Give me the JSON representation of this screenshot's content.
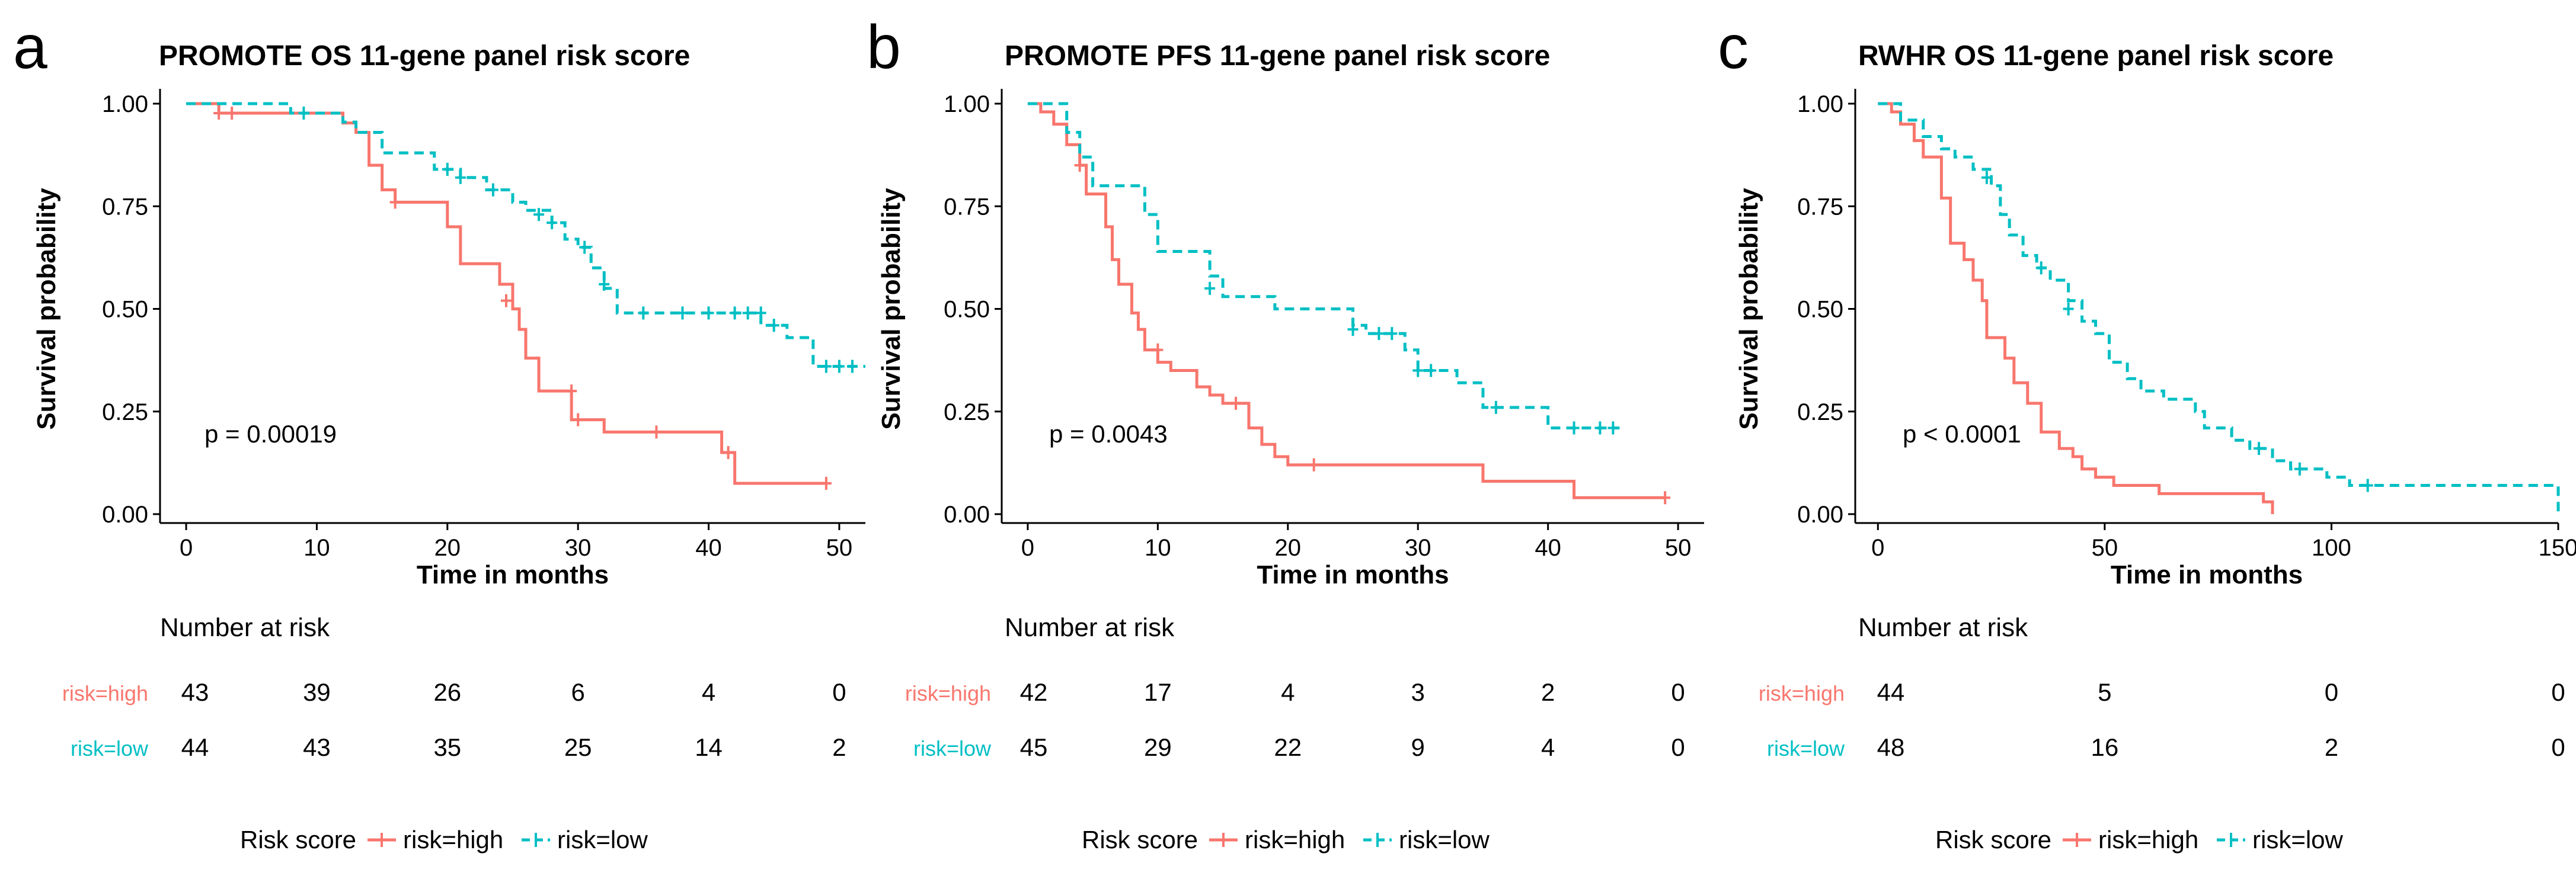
{
  "colors": {
    "high": "#F8766D",
    "low": "#00BFC4",
    "axis": "#000000",
    "text": "#000000"
  },
  "risk_table_title": "Number at risk",
  "chart_data": [
    {
      "type": "line",
      "panel_letter": "a",
      "title": "PROMOTE OS 11-gene panel risk score",
      "xlabel": "Time in months",
      "ylabel": "Survival probability",
      "xlim": [
        0,
        52
      ],
      "ylim": [
        0,
        1
      ],
      "xticks": [
        0,
        10,
        20,
        30,
        40,
        50
      ],
      "yticks": [
        0,
        0.25,
        0.5,
        0.75,
        1
      ],
      "ytick_labels": [
        "0.00",
        "0.25",
        "0.50",
        "0.75",
        "1.00"
      ],
      "pvalue": "p = 0.00019",
      "risk_table": {
        "times": [
          0,
          10,
          20,
          30,
          40,
          50
        ],
        "rows": [
          {
            "label": "risk=high",
            "counts": [
              43,
              39,
              26,
              6,
              4,
              0
            ]
          },
          {
            "label": "risk=low",
            "counts": [
              44,
              43,
              35,
              25,
              14,
              2
            ]
          }
        ]
      },
      "legend": {
        "title": "Risk score",
        "entries": [
          "risk=high",
          "risk=low"
        ]
      },
      "series": [
        {
          "name": "risk=high",
          "steps": [
            [
              0,
              1.0
            ],
            [
              2.5,
              0.977
            ],
            [
              10,
              0.977
            ],
            [
              12,
              0.953
            ],
            [
              13,
              0.93
            ],
            [
              14,
              0.85
            ],
            [
              15,
              0.79
            ],
            [
              16,
              0.76
            ],
            [
              20,
              0.7
            ],
            [
              21,
              0.61
            ],
            [
              24,
              0.56
            ],
            [
              25,
              0.5
            ],
            [
              25.5,
              0.45
            ],
            [
              26,
              0.38
            ],
            [
              27,
              0.3
            ],
            [
              29.5,
              0.23
            ],
            [
              32,
              0.2
            ],
            [
              41,
              0.15
            ],
            [
              42,
              0.075
            ],
            [
              49,
              0.075
            ]
          ],
          "censors": [
            [
              2.5,
              0.977
            ],
            [
              3.5,
              0.977
            ],
            [
              16,
              0.76
            ],
            [
              24.5,
              0.52
            ],
            [
              29.5,
              0.3
            ],
            [
              30,
              0.23
            ],
            [
              36,
              0.2
            ],
            [
              41.5,
              0.15
            ],
            [
              49,
              0.075
            ]
          ]
        },
        {
          "name": "risk=low",
          "steps": [
            [
              0,
              1.0
            ],
            [
              8,
              0.977
            ],
            [
              10,
              0.977
            ],
            [
              12,
              0.955
            ],
            [
              13,
              0.93
            ],
            [
              15,
              0.88
            ],
            [
              19,
              0.84
            ],
            [
              21,
              0.82
            ],
            [
              23,
              0.79
            ],
            [
              25,
              0.76
            ],
            [
              26,
              0.74
            ],
            [
              28,
              0.71
            ],
            [
              29,
              0.67
            ],
            [
              30,
              0.65
            ],
            [
              31,
              0.6
            ],
            [
              32,
              0.55
            ],
            [
              33,
              0.49
            ],
            [
              44,
              0.46
            ],
            [
              46,
              0.43
            ],
            [
              48,
              0.36
            ],
            [
              52,
              0.36
            ]
          ],
          "censors": [
            [
              9,
              0.977
            ],
            [
              20,
              0.84
            ],
            [
              21,
              0.82
            ],
            [
              23.5,
              0.79
            ],
            [
              27,
              0.73
            ],
            [
              28,
              0.71
            ],
            [
              30.5,
              0.65
            ],
            [
              32,
              0.56
            ],
            [
              35,
              0.49
            ],
            [
              38,
              0.49
            ],
            [
              40,
              0.49
            ],
            [
              42,
              0.49
            ],
            [
              43,
              0.49
            ],
            [
              44,
              0.49
            ],
            [
              45,
              0.46
            ],
            [
              49,
              0.36
            ],
            [
              50,
              0.36
            ],
            [
              51,
              0.36
            ]
          ]
        }
      ]
    },
    {
      "type": "line",
      "panel_letter": "b",
      "title": "PROMOTE PFS 11-gene panel risk score",
      "xlabel": "Time in months",
      "ylabel": "Survival probability",
      "xlim": [
        0,
        52
      ],
      "ylim": [
        0,
        1
      ],
      "xticks": [
        0,
        10,
        20,
        30,
        40,
        50
      ],
      "yticks": [
        0,
        0.25,
        0.5,
        0.75,
        1
      ],
      "ytick_labels": [
        "0.00",
        "0.25",
        "0.50",
        "0.75",
        "1.00"
      ],
      "pvalue": "p = 0.0043",
      "risk_table": {
        "times": [
          0,
          10,
          20,
          30,
          40,
          50
        ],
        "rows": [
          {
            "label": "risk=high",
            "counts": [
              42,
              17,
              4,
              3,
              2,
              0
            ]
          },
          {
            "label": "risk=low",
            "counts": [
              45,
              29,
              22,
              9,
              4,
              0
            ]
          }
        ]
      },
      "legend": {
        "title": "Risk score",
        "entries": [
          "risk=high",
          "risk=low"
        ]
      },
      "series": [
        {
          "name": "risk=high",
          "steps": [
            [
              0,
              1.0
            ],
            [
              1,
              0.98
            ],
            [
              2,
              0.95
            ],
            [
              3,
              0.9
            ],
            [
              4,
              0.85
            ],
            [
              4.5,
              0.78
            ],
            [
              6,
              0.7
            ],
            [
              6.5,
              0.62
            ],
            [
              7,
              0.56
            ],
            [
              8,
              0.49
            ],
            [
              8.5,
              0.45
            ],
            [
              9,
              0.4
            ],
            [
              10,
              0.37
            ],
            [
              11,
              0.35
            ],
            [
              13,
              0.31
            ],
            [
              14,
              0.29
            ],
            [
              15,
              0.27
            ],
            [
              17,
              0.21
            ],
            [
              18,
              0.17
            ],
            [
              19,
              0.14
            ],
            [
              20,
              0.12
            ],
            [
              22,
              0.12
            ],
            [
              35,
              0.08
            ],
            [
              42,
              0.04
            ],
            [
              49,
              0.04
            ]
          ],
          "censors": [
            [
              4,
              0.85
            ],
            [
              10,
              0.4
            ],
            [
              16,
              0.27
            ],
            [
              22,
              0.12
            ],
            [
              49,
              0.04
            ]
          ]
        },
        {
          "name": "risk=low",
          "steps": [
            [
              0,
              1.0
            ],
            [
              3,
              0.93
            ],
            [
              4,
              0.87
            ],
            [
              5,
              0.8
            ],
            [
              9,
              0.73
            ],
            [
              10,
              0.64
            ],
            [
              14,
              0.58
            ],
            [
              15,
              0.53
            ],
            [
              19,
              0.5
            ],
            [
              25,
              0.46
            ],
            [
              26,
              0.44
            ],
            [
              29,
              0.4
            ],
            [
              30,
              0.35
            ],
            [
              33,
              0.32
            ],
            [
              35,
              0.26
            ],
            [
              40,
              0.21
            ],
            [
              45.5,
              0.21
            ]
          ],
          "censors": [
            [
              14,
              0.55
            ],
            [
              25,
              0.45
            ],
            [
              27,
              0.44
            ],
            [
              28,
              0.44
            ],
            [
              30,
              0.35
            ],
            [
              31,
              0.35
            ],
            [
              36,
              0.26
            ],
            [
              42,
              0.21
            ],
            [
              44,
              0.21
            ],
            [
              45,
              0.21
            ]
          ]
        }
      ]
    },
    {
      "type": "line",
      "panel_letter": "c",
      "title": "RWHR OS 11-gene panel risk score",
      "xlabel": "Time in months",
      "ylabel": "Survival probability",
      "xlim": [
        0,
        150
      ],
      "ylim": [
        0,
        1
      ],
      "xticks": [
        0,
        50,
        100,
        150
      ],
      "yticks": [
        0,
        0.25,
        0.5,
        0.75,
        1
      ],
      "ytick_labels": [
        "0.00",
        "0.25",
        "0.50",
        "0.75",
        "1.00"
      ],
      "pvalue": "p < 0.0001",
      "risk_table": {
        "times": [
          0,
          50,
          100,
          150
        ],
        "rows": [
          {
            "label": "risk=high",
            "counts": [
              44,
              5,
              0,
              0
            ]
          },
          {
            "label": "risk=low",
            "counts": [
              48,
              16,
              2,
              0
            ]
          }
        ]
      },
      "legend": {
        "title": "Risk score",
        "entries": [
          "risk=high",
          "risk=low"
        ]
      },
      "series": [
        {
          "name": "risk=high",
          "steps": [
            [
              0,
              1.0
            ],
            [
              3,
              0.98
            ],
            [
              5,
              0.95
            ],
            [
              8,
              0.91
            ],
            [
              10,
              0.87
            ],
            [
              14,
              0.77
            ],
            [
              16,
              0.66
            ],
            [
              19,
              0.62
            ],
            [
              21,
              0.57
            ],
            [
              23,
              0.52
            ],
            [
              24,
              0.43
            ],
            [
              28,
              0.38
            ],
            [
              30,
              0.32
            ],
            [
              33,
              0.27
            ],
            [
              36,
              0.2
            ],
            [
              40,
              0.16
            ],
            [
              43,
              0.14
            ],
            [
              45,
              0.11
            ],
            [
              48,
              0.09
            ],
            [
              52,
              0.07
            ],
            [
              62,
              0.05
            ],
            [
              75,
              0.05
            ],
            [
              85,
              0.03
            ],
            [
              87,
              0.0
            ]
          ],
          "censors": []
        },
        {
          "name": "risk=low",
          "steps": [
            [
              0,
              1.0
            ],
            [
              5,
              0.96
            ],
            [
              10,
              0.92
            ],
            [
              14,
              0.89
            ],
            [
              17,
              0.87
            ],
            [
              21,
              0.84
            ],
            [
              25,
              0.8
            ],
            [
              27,
              0.73
            ],
            [
              29,
              0.68
            ],
            [
              32,
              0.63
            ],
            [
              35,
              0.6
            ],
            [
              38,
              0.57
            ],
            [
              42,
              0.52
            ],
            [
              45,
              0.47
            ],
            [
              48,
              0.44
            ],
            [
              51,
              0.37
            ],
            [
              55,
              0.33
            ],
            [
              58,
              0.3
            ],
            [
              63,
              0.28
            ],
            [
              70,
              0.25
            ],
            [
              72,
              0.21
            ],
            [
              78,
              0.18
            ],
            [
              82,
              0.16
            ],
            [
              87,
              0.13
            ],
            [
              91,
              0.11
            ],
            [
              99,
              0.09
            ],
            [
              104,
              0.07
            ],
            [
              148,
              0.07
            ],
            [
              150,
              0.0
            ]
          ],
          "censors": [
            [
              24,
              0.82
            ],
            [
              36,
              0.6
            ],
            [
              42,
              0.5
            ],
            [
              84,
              0.16
            ],
            [
              93,
              0.11
            ],
            [
              108,
              0.07
            ]
          ]
        }
      ]
    }
  ]
}
